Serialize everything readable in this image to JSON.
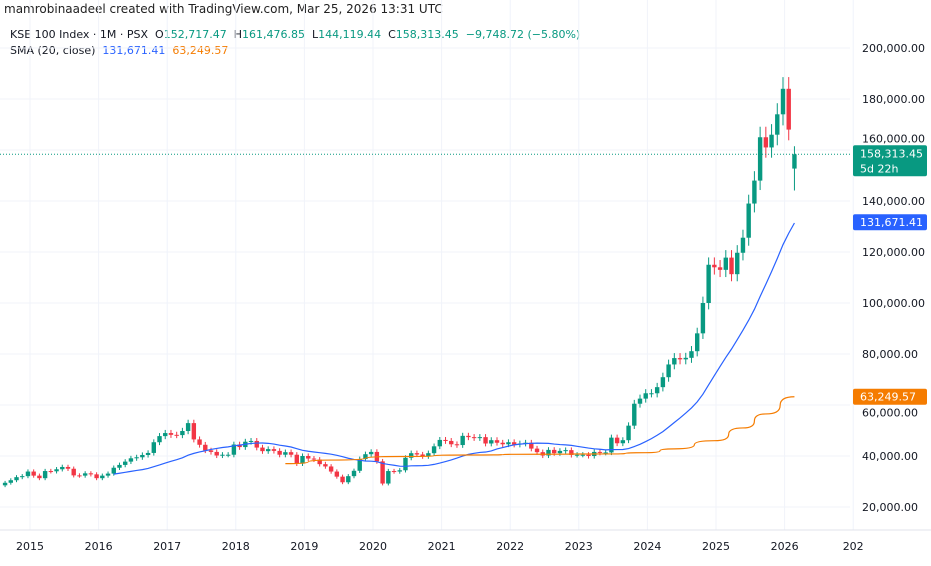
{
  "credit": "mamrobinaadeel created with TradingView.com, Mar 25, 2026 13:31 UTC",
  "legend": {
    "symbol": "KSE 100 Index · 1M · PSX",
    "o_label": "O",
    "o": "152,717.47",
    "h_label": "H",
    "h": "161,476.85",
    "l_label": "L",
    "l": "144,119.44",
    "c_label": "C",
    "c": "158,313.45",
    "change": "−9,748.72 (−5.80%)",
    "sma_label": "SMA (20, close)",
    "sma_value_1": "131,671.41",
    "sma_value_2": "63,249.57"
  },
  "price_labels": {
    "last": "158,313.45",
    "countdown": "5d 22h",
    "sma_1": "131,671.41",
    "sma_2": "63,249.57"
  },
  "colors": {
    "up": "#089981",
    "down": "#f23645",
    "sma_1": "#2962ff",
    "sma_2": "#f57c00",
    "grid": "#f0f3fa"
  },
  "chart_data": {
    "type": "candlestick",
    "interval": "1M",
    "start": "2014-09",
    "ylim": [
      12000,
      212000
    ],
    "yticks": [
      "20,000.00",
      "40,000.00",
      "60,000.00",
      "80,000.00",
      "100,000.00",
      "120,000.00",
      "140,000.00",
      "160,000.00",
      "180,000.00",
      "200,000.00"
    ],
    "ytick_values": [
      20000,
      40000,
      60000,
      80000,
      100000,
      120000,
      140000,
      160000,
      180000,
      200000
    ],
    "xticks": [
      "2015",
      "2016",
      "2017",
      "2018",
      "2019",
      "2020",
      "2021",
      "2022",
      "2023",
      "2024",
      "2025",
      "2026",
      "202"
    ],
    "grid": true,
    "first_open": 28500,
    "closes": [
      29500,
      30500,
      31700,
      32100,
      33900,
      32300,
      31300,
      34100,
      34000,
      34800,
      35700,
      35000,
      32400,
      32300,
      33200,
      32800,
      31300,
      32300,
      33100,
      35400,
      36500,
      37800,
      39100,
      39500,
      40400,
      41200,
      45400,
      47800,
      49000,
      48300,
      48200,
      49800,
      52900,
      46500,
      44400,
      42200,
      41600,
      40200,
      40500,
      40500,
      44500,
      43500,
      45600,
      45900,
      43300,
      41900,
      42700,
      42000,
      40500,
      41500,
      40500,
      37000,
      40000,
      39000,
      38600,
      36800,
      35900,
      33900,
      31900,
      29700,
      32100,
      34200,
      38800,
      40700,
      41600,
      37900,
      29200,
      34100,
      33900,
      34400,
      39300,
      41100,
      40600,
      39900,
      41100,
      43800,
      46300,
      45900,
      44600,
      44300,
      47900,
      47400,
      47100,
      47400,
      44900,
      46200,
      45200,
      44600,
      45400,
      44500,
      44900,
      45200,
      42900,
      41500,
      40200,
      42400,
      41100,
      42000,
      42300,
      40400,
      40500,
      40500,
      40000,
      41600,
      41300,
      41400,
      47200,
      45000,
      46200,
      51900,
      60500,
      62500,
      64600,
      64600,
      67000,
      70900,
      75900,
      78400,
      77900,
      78500,
      81100,
      88100,
      100000,
      115000,
      114000,
      113000,
      117800,
      111300,
      119700,
      125600,
      139000,
      148000,
      165000,
      161000,
      166000,
      174000,
      184000,
      168000,
      158313.45
    ],
    "last_candle": {
      "open": 152717.47,
      "high": 161476.85,
      "low": 144119.44,
      "close": 158313.45
    },
    "sma_1": {
      "name": "SMA (20, close)",
      "period": 20,
      "last": 131671.41
    },
    "sma_2": {
      "last": 63249.57,
      "points": [
        [
          "2018-10",
          37000
        ],
        [
          "2019-06",
          38400
        ],
        [
          "2020-06",
          39800
        ],
        [
          "2021-06",
          40400
        ],
        [
          "2022-06",
          40700
        ],
        [
          "2023-06",
          40800
        ],
        [
          "2024-01",
          41300
        ],
        [
          "2024-06",
          42800
        ],
        [
          "2025-01",
          46000
        ],
        [
          "2025-06",
          51000
        ],
        [
          "2025-10",
          56500
        ],
        [
          "2026-03",
          63249.57
        ]
      ]
    }
  }
}
